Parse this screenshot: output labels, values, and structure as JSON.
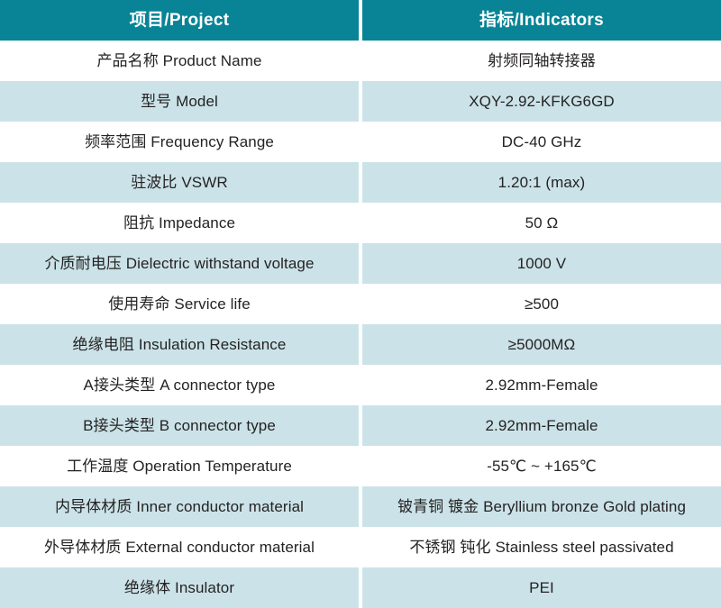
{
  "colors": {
    "header_bg": "#088496",
    "header_text": "#ffffff",
    "row_bg": "#ffffff",
    "row_alt_bg": "#cbe3e8",
    "body_text": "#252223",
    "divider": "#ffffff"
  },
  "table": {
    "header": {
      "project": "项目/Project",
      "indicators": "指标/Indicators"
    },
    "rows": [
      {
        "label": "产品名称 Product Name",
        "value": "射频同轴转接器"
      },
      {
        "label": "型号 Model",
        "value": "XQY-2.92-KFKG6GD"
      },
      {
        "label": "频率范围 Frequency Range",
        "value": "DC-40 GHz"
      },
      {
        "label": "驻波比 VSWR",
        "value": "1.20:1 (max)"
      },
      {
        "label": "阻抗 Impedance",
        "value": "50 Ω"
      },
      {
        "label": "介质耐电压 Dielectric withstand voltage",
        "value": "1000 V"
      },
      {
        "label": "使用寿命 Service life",
        "value": "≥500"
      },
      {
        "label": "绝缘电阻 Insulation Resistance",
        "value": "≥5000MΩ"
      },
      {
        "label": "A接头类型 A connector type",
        "value": "2.92mm-Female"
      },
      {
        "label": "B接头类型 B connector type",
        "value": "2.92mm-Female"
      },
      {
        "label": "工作温度 Operation Temperature",
        "value": "-55℃ ~ +165℃"
      },
      {
        "label": "内导体材质 Inner conductor material",
        "value": "铍青铜 镀金 Beryllium bronze Gold plating"
      },
      {
        "label": "外导体材质 External conductor material",
        "value": "不锈钢 钝化 Stainless steel passivated"
      },
      {
        "label": "绝缘体 Insulator",
        "value": "PEI"
      }
    ]
  }
}
